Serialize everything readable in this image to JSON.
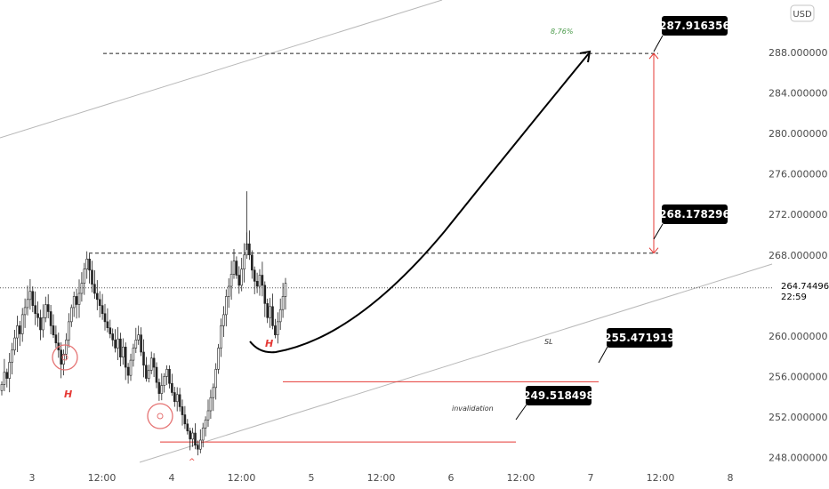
{
  "currency_badge": "USD",
  "chart_data": {
    "type": "candlestick",
    "y_axis": {
      "ylim": [
        246.8,
        293.2
      ],
      "ticks": [
        "288.000000",
        "284.000000",
        "280.000000",
        "276.000000",
        "272.000000",
        "268.000000",
        "260.000000",
        "256.000000",
        "252.000000",
        "248.000000"
      ],
      "tick_values": [
        288,
        284,
        280,
        276,
        272,
        268,
        260,
        256,
        252,
        248
      ]
    },
    "x_axis": {
      "ticks": [
        "3",
        "12:00",
        "4",
        "12:00",
        "5",
        "12:00",
        "6",
        "12:00",
        "7",
        "12:00",
        "8"
      ]
    },
    "current_price": {
      "value": "264.744968",
      "countdown": "22:59",
      "level": 264.744968
    },
    "levels": {
      "target": {
        "label": "287.916356",
        "value": 287.916356
      },
      "breakout": {
        "label": "268.178296",
        "value": 268.178296
      },
      "stop_loss": {
        "label": "255.471919",
        "value": 255.471919,
        "note": "SL"
      },
      "invalidation": {
        "label": "249.518498",
        "value": 249.518498,
        "note": "invalidation"
      }
    },
    "percent_note": "8,76%",
    "pattern_markers": [
      "H",
      "H"
    ],
    "candles_close_path": [
      255.2,
      256.4,
      255.8,
      257.4,
      258.6,
      259.8,
      261.0,
      260.2,
      262.1,
      262.8,
      263.6,
      264.4,
      263.0,
      262.2,
      261.8,
      260.6,
      261.8,
      263.1,
      262.4,
      261.0,
      260.1,
      259.3,
      258.6,
      257.2,
      258.2,
      259.6,
      261.4,
      262.8,
      263.9,
      263.1,
      264.2,
      265.2,
      266.6,
      267.6,
      266.5,
      265.1,
      264.2,
      263.6,
      263.0,
      262.2,
      261.4,
      260.8,
      260.2,
      259.6,
      258.8,
      259.7,
      257.9,
      258.9,
      256.9,
      256.1,
      257.6,
      258.8,
      259.6,
      260.1,
      258.4,
      257.1,
      255.8,
      256.6,
      257.8,
      256.9,
      255.4,
      254.3,
      255.1,
      256.0,
      256.7,
      255.3,
      254.4,
      253.5,
      254.2,
      253.0,
      252.2,
      251.3,
      250.6,
      249.8,
      250.4,
      249.2,
      248.8,
      249.7,
      250.9,
      251.7,
      252.6,
      253.9,
      254.9,
      256.7,
      258.8,
      261.0,
      262.1,
      263.9,
      264.9,
      266.1,
      267.4,
      266.0,
      265.0,
      266.6,
      268.0,
      269.1,
      268.0,
      266.5,
      265.4,
      264.9,
      266.0,
      265.0,
      263.2,
      261.8,
      262.9,
      261.0,
      260.1,
      261.4,
      262.6,
      263.9,
      265.2
    ]
  }
}
